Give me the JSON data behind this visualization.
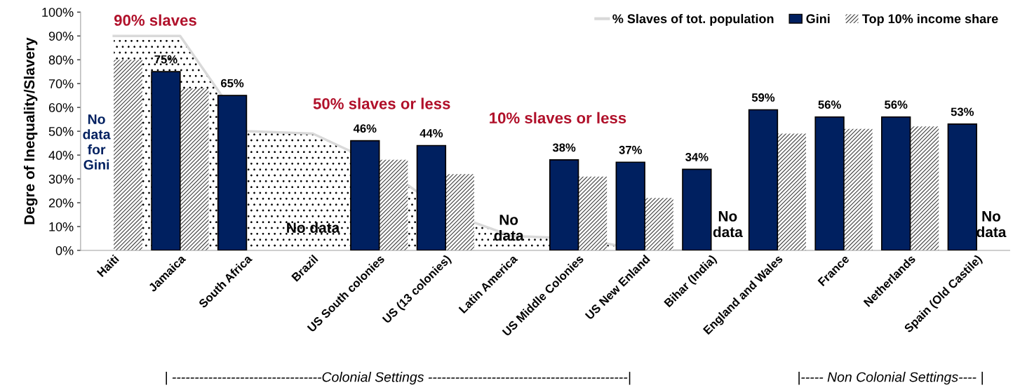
{
  "chart_data": {
    "type": "bar",
    "ylabel": "Degre of Inequality/Slavery",
    "categories": [
      "Haiti",
      "Jamaica",
      "South Africa",
      "Brazil",
      "US South colonies",
      "US (13 colonies)",
      "Latin America",
      "US Middle Colonies",
      "US New Enland",
      "Bihar (India)",
      "England and Wales",
      "France",
      "Netherlands",
      "Spain (Old Castile)"
    ],
    "series": [
      {
        "name": "% Slaves of tot. population",
        "type": "area",
        "color": "#d9d9d9",
        "values": [
          90,
          90,
          50,
          49,
          36,
          16,
          6,
          5,
          0,
          0,
          null,
          null,
          null,
          null
        ]
      },
      {
        "name": "Gini",
        "color": "#002060",
        "values": [
          null,
          75,
          65,
          null,
          46,
          44,
          null,
          38,
          37,
          34,
          59,
          56,
          56,
          53
        ],
        "value_labels": [
          null,
          "75%",
          "65%",
          null,
          "46%",
          "44%",
          null,
          "38%",
          "37%",
          "34%",
          "59%",
          "56%",
          "56%",
          "53%"
        ]
      },
      {
        "name": "Top 10% income share",
        "color": "#404040",
        "values": [
          80,
          68,
          null,
          null,
          38,
          32,
          null,
          31,
          22,
          null,
          49,
          51,
          52,
          null
        ]
      }
    ],
    "ylim": [
      0,
      100
    ],
    "yticks": [
      {
        "value": 0,
        "label": "0%"
      },
      {
        "value": 10,
        "label": "10%"
      },
      {
        "value": 20,
        "label": "20%"
      },
      {
        "value": 30,
        "label": "30%"
      },
      {
        "value": 40,
        "label": "40%"
      },
      {
        "value": 50,
        "label": "50%"
      },
      {
        "value": 60,
        "label": "60%"
      },
      {
        "value": 70,
        "label": "70%"
      },
      {
        "value": 80,
        "label": "80%"
      },
      {
        "value": 90,
        "label": "90%"
      },
      {
        "value": 100,
        "label": "100%"
      }
    ],
    "grid": false,
    "legend": "top right",
    "annotations": [
      "90% slaves",
      "50% slaves or less",
      "10% slaves or less",
      "No\ndata\nfor\nGini",
      "No data",
      "No\ndata",
      "No\ndata",
      "No\ndata",
      "| ---------------------------------Colonial Settings --------------------------------------------|",
      "|----- Non Colonial Settings---- |"
    ]
  }
}
